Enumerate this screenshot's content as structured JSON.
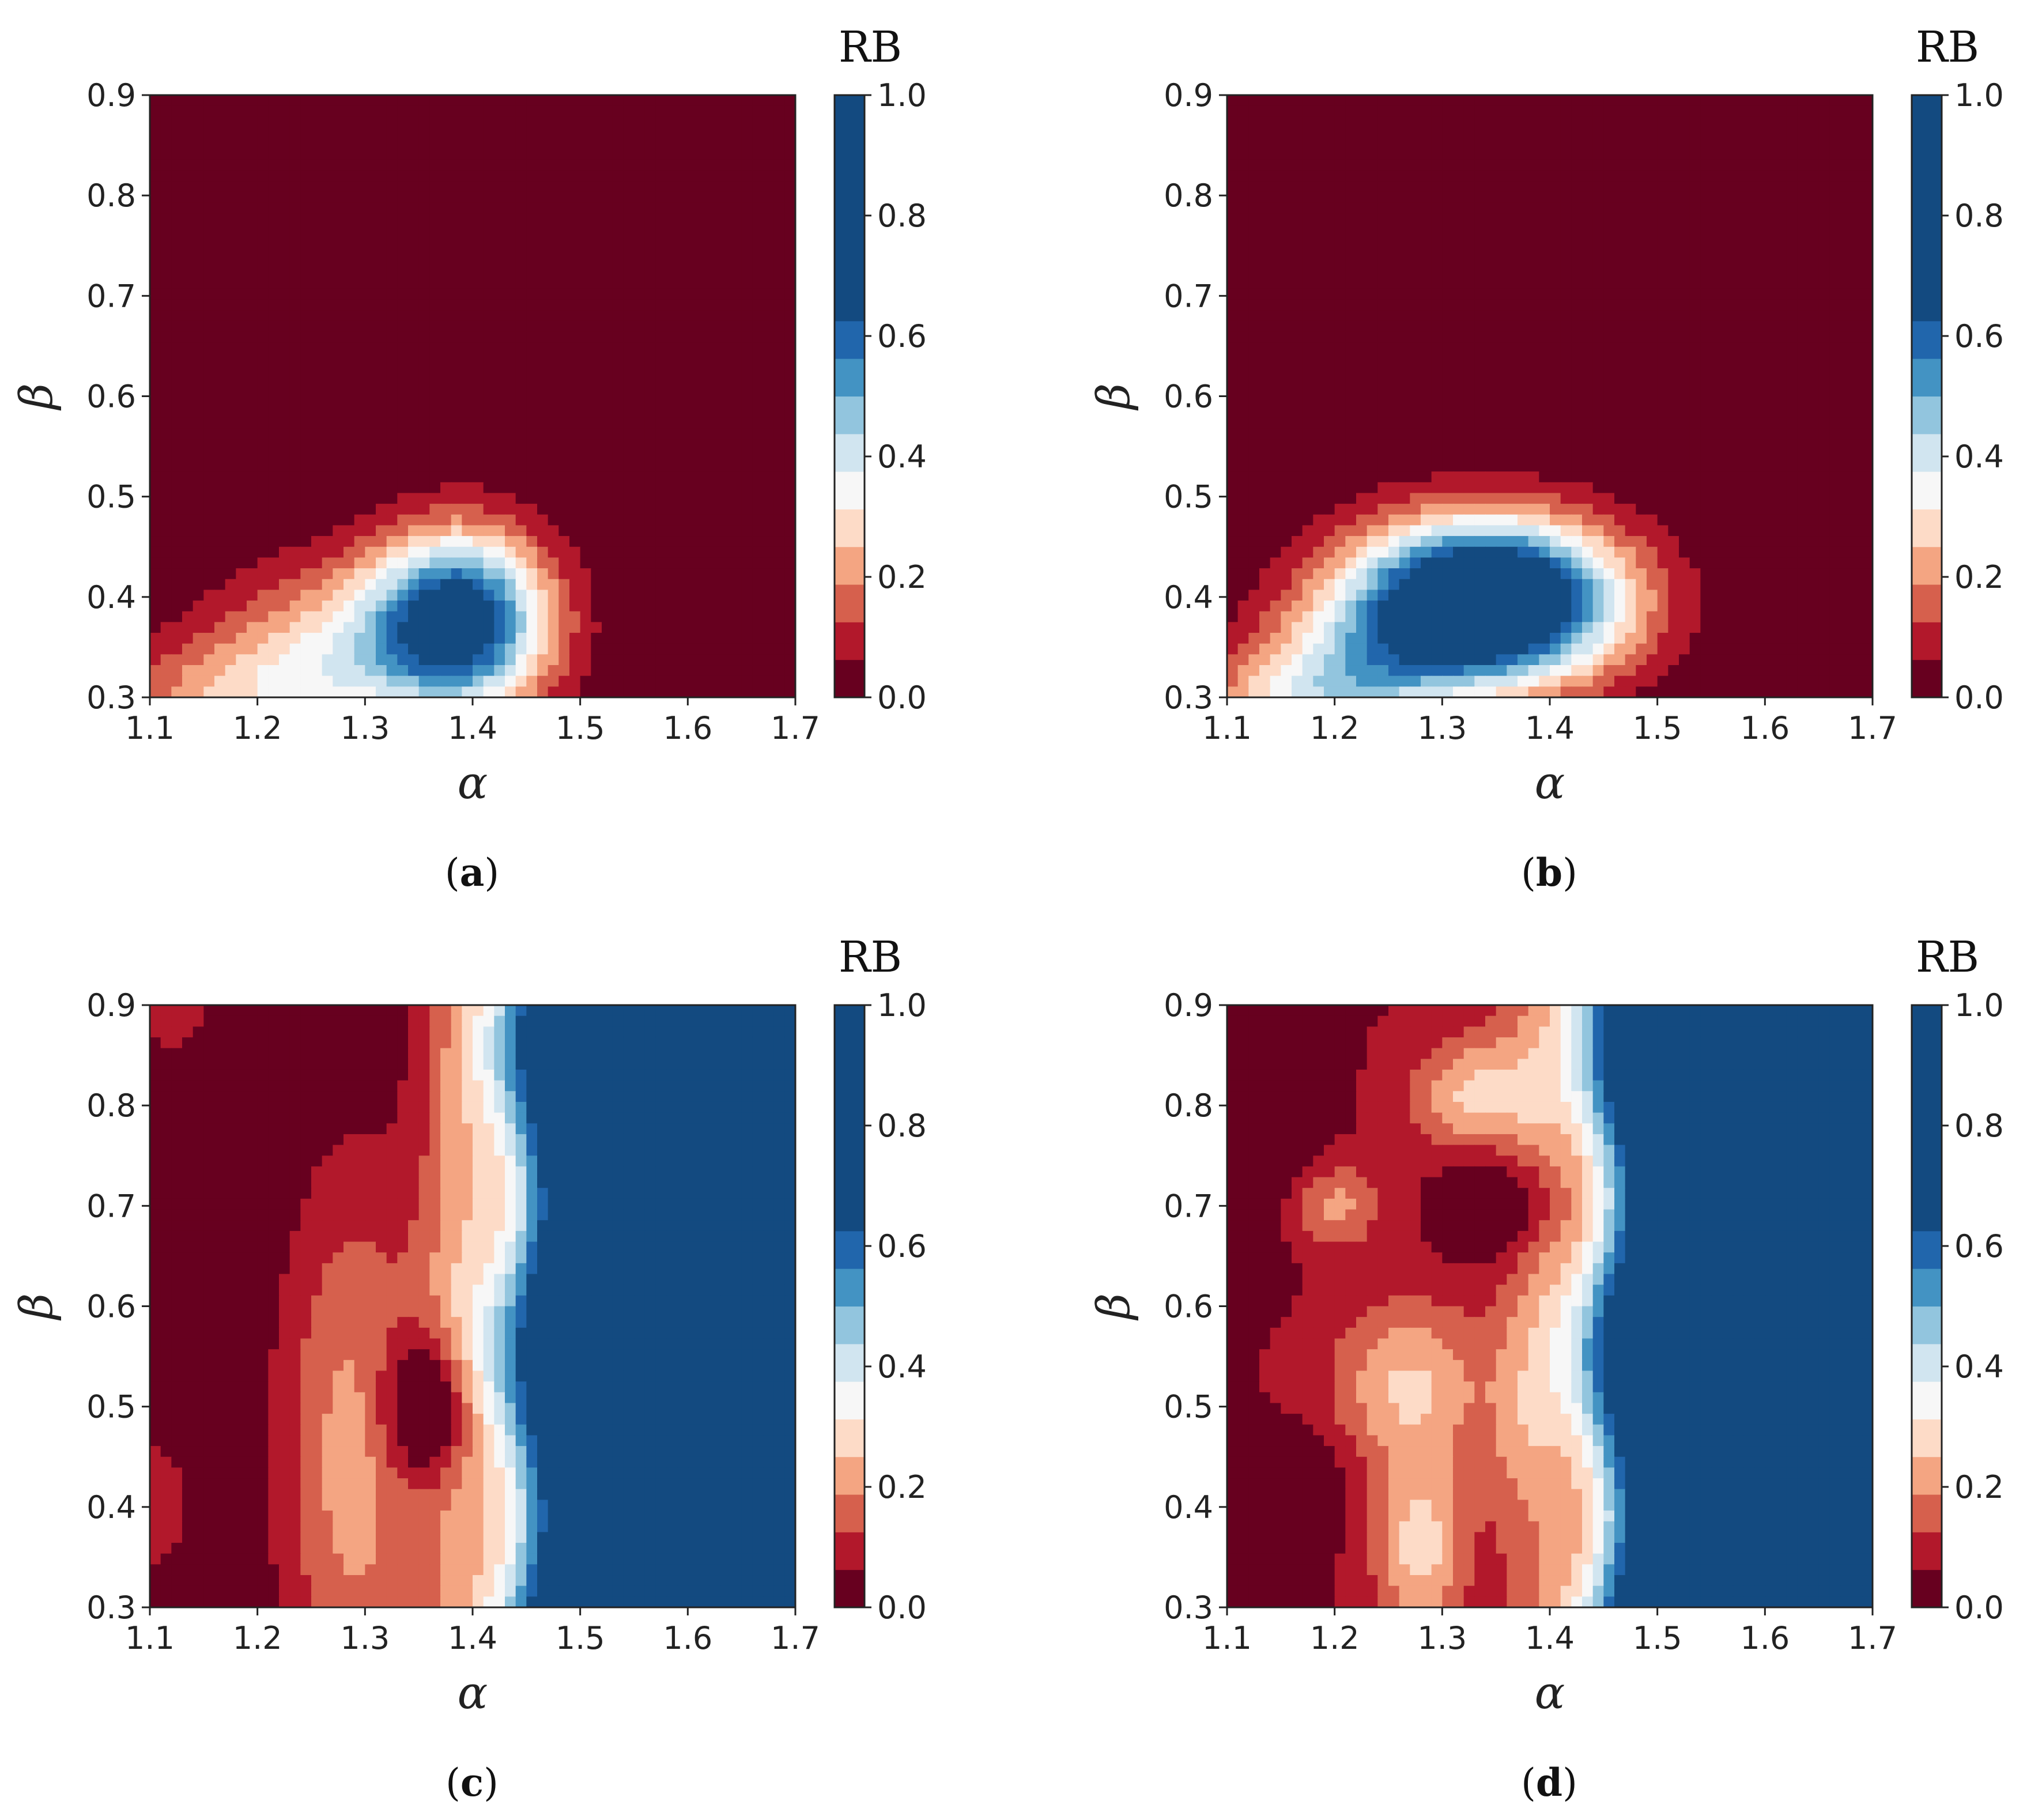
{
  "colorbar": {
    "title": "RB",
    "ticks": [
      "0.0",
      "0.2",
      "0.4",
      "0.6",
      "0.8",
      "1.0"
    ],
    "levels": [
      0.0,
      0.0625,
      0.125,
      0.1875,
      0.25,
      0.3125,
      0.375,
      0.4375,
      0.5,
      0.5625,
      0.625,
      1.0
    ],
    "colors": [
      "#67001f",
      "#b2182b",
      "#d6604d",
      "#f4a582",
      "#fddbc7",
      "#f7f7f7",
      "#d1e5f0",
      "#92c5de",
      "#4393c3",
      "#2166ac",
      "#134a80"
    ],
    "contour_line_color": "#d9d9d9"
  },
  "chart_data": [
    {
      "type": "heatmap",
      "panel_label": "a",
      "xlabel": "α",
      "ylabel": "β",
      "xlim": [
        1.1,
        1.7
      ],
      "ylim": [
        0.3,
        0.9
      ],
      "xticks": [
        "1.1",
        "1.2",
        "1.3",
        "1.4",
        "1.5",
        "1.6",
        "1.7"
      ],
      "yticks": [
        "0.3",
        "0.4",
        "0.5",
        "0.6",
        "0.7",
        "0.8",
        "0.9"
      ],
      "field": {
        "base": 0.0,
        "bumps": [
          {
            "x": 1.39,
            "y": 0.38,
            "sx": 0.055,
            "sy": 0.06,
            "a": 0.62
          },
          {
            "x": 1.3,
            "y": 0.35,
            "sx": 0.09,
            "sy": 0.06,
            "a": 0.3
          },
          {
            "x": 1.18,
            "y": 0.3,
            "sx": 0.08,
            "sy": 0.04,
            "a": 0.2
          }
        ]
      }
    },
    {
      "type": "heatmap",
      "panel_label": "b",
      "xlabel": "α",
      "ylabel": "β",
      "xlim": [
        1.1,
        1.7
      ],
      "ylim": [
        0.3,
        0.9
      ],
      "xticks": [
        "1.1",
        "1.2",
        "1.3",
        "1.4",
        "1.5",
        "1.6",
        "1.7"
      ],
      "yticks": [
        "0.3",
        "0.4",
        "0.5",
        "0.6",
        "0.7",
        "0.8",
        "0.9"
      ],
      "field": {
        "base": 0.0,
        "bumps": [
          {
            "x": 1.34,
            "y": 0.395,
            "sx": 0.085,
            "sy": 0.055,
            "a": 1.0
          },
          {
            "x": 1.22,
            "y": 0.32,
            "sx": 0.07,
            "sy": 0.05,
            "a": 0.3
          },
          {
            "x": 1.15,
            "y": 0.3,
            "sx": 0.06,
            "sy": 0.03,
            "a": 0.15
          }
        ]
      }
    },
    {
      "type": "heatmap",
      "panel_label": "c",
      "xlabel": "α",
      "ylabel": "β",
      "xlim": [
        1.1,
        1.7
      ],
      "ylim": [
        0.3,
        0.9
      ],
      "xticks": [
        "1.1",
        "1.2",
        "1.3",
        "1.4",
        "1.5",
        "1.6",
        "1.7"
      ],
      "yticks": [
        "0.3",
        "0.4",
        "0.5",
        "0.6",
        "0.7",
        "0.8",
        "0.9"
      ],
      "field": {
        "base": 0.0,
        "step": {
          "x0": 1.445,
          "width": 0.022,
          "wobble": 0.01
        },
        "bumps": [
          {
            "x": 1.29,
            "y": 0.45,
            "sx": 0.05,
            "sy": 0.2,
            "a": 0.22
          },
          {
            "x": 1.39,
            "y": 0.6,
            "sx": 0.03,
            "sy": 0.35,
            "a": 0.18
          },
          {
            "x": 1.36,
            "y": 0.5,
            "sx": 0.03,
            "sy": 0.05,
            "a": -0.25
          },
          {
            "x": 1.1,
            "y": 0.4,
            "sx": 0.03,
            "sy": 0.05,
            "a": 0.12
          },
          {
            "x": 1.12,
            "y": 0.9,
            "sx": 0.03,
            "sy": 0.04,
            "a": 0.1
          }
        ]
      }
    },
    {
      "type": "heatmap",
      "panel_label": "d",
      "xlabel": "α",
      "ylabel": "β",
      "xlim": [
        1.1,
        1.7
      ],
      "ylim": [
        0.3,
        0.9
      ],
      "xticks": [
        "1.1",
        "1.2",
        "1.3",
        "1.4",
        "1.5",
        "1.6",
        "1.7"
      ],
      "yticks": [
        "0.3",
        "0.4",
        "0.5",
        "0.6",
        "0.7",
        "0.8",
        "0.9"
      ],
      "field": {
        "base": 0.06,
        "step": {
          "x0": 1.455,
          "width": 0.022,
          "wobble": 0.012
        },
        "bumps": [
          {
            "x": 1.27,
            "y": 0.52,
            "sx": 0.05,
            "sy": 0.06,
            "a": 0.2
          },
          {
            "x": 1.28,
            "y": 0.36,
            "sx": 0.03,
            "sy": 0.06,
            "a": 0.22
          },
          {
            "x": 1.33,
            "y": 0.81,
            "sx": 0.04,
            "sy": 0.04,
            "a": 0.2
          },
          {
            "x": 1.2,
            "y": 0.7,
            "sx": 0.03,
            "sy": 0.03,
            "a": 0.15
          },
          {
            "x": 1.36,
            "y": 0.7,
            "sx": 0.035,
            "sy": 0.04,
            "a": -0.15
          },
          {
            "x": 1.15,
            "y": 0.42,
            "sx": 0.04,
            "sy": 0.035,
            "a": -0.12
          },
          {
            "x": 1.12,
            "y": 0.78,
            "sx": 0.04,
            "sy": 0.08,
            "a": -0.1
          },
          {
            "x": 1.37,
            "y": 0.47,
            "sx": 0.02,
            "sy": 0.05,
            "a": 0.05
          },
          {
            "x": 1.39,
            "y": 0.6,
            "sx": 0.03,
            "sy": 0.3,
            "a": 0.12
          }
        ]
      }
    }
  ]
}
